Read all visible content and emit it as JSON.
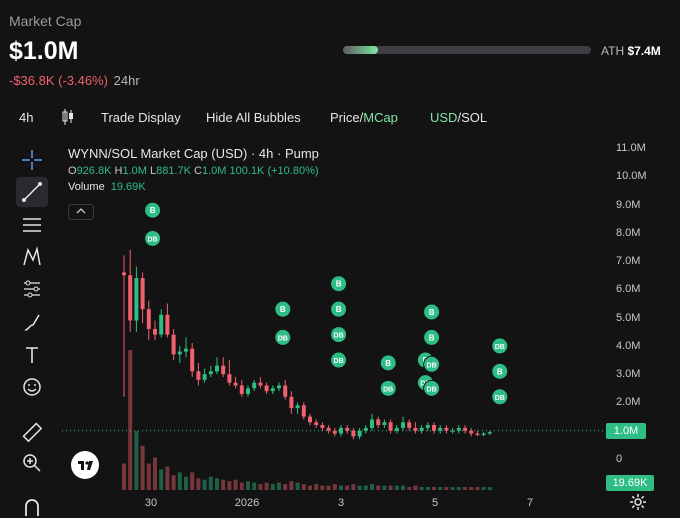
{
  "header": {
    "label": "Market Cap",
    "value": "$1.0M",
    "change": "-$36.8K (-3.46%)",
    "period": "24hr",
    "ath_label": "ATH",
    "ath_value": "$7.4M",
    "ath_progress_fraction": 0.14
  },
  "toolbar": {
    "interval": "4h",
    "trade_display": "Trade Display",
    "hide_bubbles": "Hide All Bubbles",
    "price_label": "Price/",
    "mcap_label": "MCap",
    "usd_label": "USD",
    "sol_label": "/SOL"
  },
  "sidebar_tools": [
    "crosshair-icon",
    "trendline-icon",
    "fib-icon",
    "pattern-icon",
    "forecast-icon",
    "brush-icon",
    "text-icon",
    "emoji-icon",
    "ruler-icon",
    "zoom-icon",
    "magnet-icon"
  ],
  "legend": {
    "title": "WYNN/SOL Market Cap (USD) · 4h · Pump",
    "o_key": "O",
    "o": "926.8K",
    "h_key": "H",
    "h": "1.0M",
    "l_key": "L",
    "l": "881.7K",
    "c_key": "C",
    "c": "1.0M",
    "change": "100.1K (+10.80%)",
    "volume_label": "Volume",
    "volume": "19.69K"
  },
  "colors": {
    "up": "#2ebd85",
    "down": "#f0616d",
    "accent": "#7fe6a6",
    "bg": "#131313"
  },
  "current_price_label": "1.0M",
  "current_volume_label": "19.69K",
  "chart_data": {
    "type": "candlestick",
    "y_ticks": [
      "11.0M",
      "10.0M",
      "9.0M",
      "8.0M",
      "7.0M",
      "6.0M",
      "5.0M",
      "4.0M",
      "3.0M",
      "2.0M",
      "0"
    ],
    "x_ticks": [
      "30",
      "2026",
      "3",
      "5",
      "7"
    ],
    "ylim": [
      0,
      11.0
    ],
    "candles": [
      [
        6.6,
        7.2,
        2.2,
        6.5
      ],
      [
        6.5,
        7.4,
        4.5,
        4.9
      ],
      [
        4.9,
        6.8,
        4.5,
        6.4
      ],
      [
        6.4,
        6.6,
        4.8,
        5.3
      ],
      [
        5.3,
        5.6,
        4.2,
        4.6
      ],
      [
        4.6,
        4.9,
        4.2,
        4.4
      ],
      [
        4.4,
        5.3,
        4.3,
        5.1
      ],
      [
        5.1,
        5.5,
        4.3,
        4.4
      ],
      [
        4.4,
        4.6,
        3.5,
        3.7
      ],
      [
        3.7,
        4.0,
        3.4,
        3.8
      ],
      [
        3.8,
        4.3,
        3.6,
        3.9
      ],
      [
        3.9,
        4.1,
        2.9,
        3.1
      ],
      [
        3.1,
        3.4,
        2.6,
        2.8
      ],
      [
        2.8,
        3.2,
        2.7,
        3.0
      ],
      [
        3.0,
        3.3,
        2.9,
        3.1
      ],
      [
        3.1,
        3.6,
        3.0,
        3.3
      ],
      [
        3.3,
        3.6,
        2.9,
        3.0
      ],
      [
        3.0,
        3.5,
        2.6,
        2.7
      ],
      [
        2.7,
        2.9,
        2.5,
        2.6
      ],
      [
        2.6,
        2.8,
        2.2,
        2.3
      ],
      [
        2.3,
        2.6,
        2.2,
        2.5
      ],
      [
        2.5,
        2.8,
        2.4,
        2.7
      ],
      [
        2.7,
        2.9,
        2.5,
        2.6
      ],
      [
        2.6,
        2.7,
        2.3,
        2.4
      ],
      [
        2.4,
        2.6,
        2.3,
        2.5
      ],
      [
        2.5,
        2.7,
        2.4,
        2.6
      ],
      [
        2.6,
        2.8,
        2.1,
        2.2
      ],
      [
        2.2,
        2.4,
        1.6,
        1.8
      ],
      [
        1.8,
        2.0,
        1.6,
        1.9
      ],
      [
        1.9,
        2.0,
        1.4,
        1.5
      ],
      [
        1.5,
        1.6,
        1.2,
        1.3
      ],
      [
        1.3,
        1.4,
        1.1,
        1.2
      ],
      [
        1.2,
        1.3,
        1.0,
        1.1
      ],
      [
        1.1,
        1.2,
        0.9,
        1.0
      ],
      [
        1.0,
        1.1,
        0.8,
        0.9
      ],
      [
        0.9,
        1.2,
        0.8,
        1.1
      ],
      [
        1.1,
        1.2,
        0.9,
        1.0
      ],
      [
        1.0,
        1.1,
        0.7,
        0.8
      ],
      [
        0.8,
        1.1,
        0.7,
        1.0
      ],
      [
        1.0,
        1.2,
        0.9,
        1.1
      ],
      [
        1.1,
        1.6,
        1.0,
        1.4
      ],
      [
        1.4,
        1.5,
        1.1,
        1.2
      ],
      [
        1.2,
        1.4,
        1.1,
        1.3
      ],
      [
        1.3,
        1.4,
        0.9,
        1.0
      ],
      [
        1.0,
        1.2,
        0.9,
        1.1
      ],
      [
        1.1,
        1.5,
        1.0,
        1.3
      ],
      [
        1.3,
        1.4,
        1.0,
        1.1
      ],
      [
        1.1,
        1.3,
        0.9,
        1.0
      ],
      [
        1.0,
        1.2,
        0.9,
        1.1
      ],
      [
        1.1,
        1.3,
        1.0,
        1.2
      ],
      [
        1.2,
        1.3,
        0.9,
        1.0
      ],
      [
        1.0,
        1.2,
        0.9,
        1.1
      ],
      [
        1.1,
        1.2,
        0.9,
        1.0
      ],
      [
        1.0,
        1.1,
        0.9,
        1.0
      ],
      [
        1.0,
        1.2,
        0.9,
        1.1
      ],
      [
        1.1,
        1.2,
        0.9,
        1.0
      ],
      [
        1.0,
        1.1,
        0.8,
        0.9
      ],
      [
        0.9,
        1.0,
        0.8,
        0.85
      ],
      [
        0.85,
        0.95,
        0.8,
        0.9
      ],
      [
        0.9,
        1.0,
        0.85,
        0.95
      ]
    ],
    "volume": [
      18,
      95,
      40,
      30,
      18,
      22,
      14,
      16,
      10,
      12,
      9,
      12,
      8,
      7,
      9,
      8,
      7,
      6,
      7,
      5,
      6,
      5,
      4,
      5,
      4,
      5,
      4,
      6,
      5,
      4,
      3,
      4,
      3,
      3,
      4,
      3,
      3,
      4,
      3,
      3,
      4,
      3,
      3,
      3,
      3,
      3,
      2,
      3,
      2,
      2,
      2,
      2,
      2,
      2,
      2,
      2,
      2,
      2,
      2,
      2
    ],
    "bubbles": [
      {
        "label": "B",
        "i": 3,
        "v": 8.8
      },
      {
        "label": "DB",
        "i": 3,
        "v": 7.8
      },
      {
        "label": "B",
        "i": 24,
        "v": 5.3
      },
      {
        "label": "DB",
        "i": 24,
        "v": 4.3
      },
      {
        "label": "B",
        "i": 33,
        "v": 6.2
      },
      {
        "label": "B",
        "i": 33,
        "v": 5.3
      },
      {
        "label": "DB",
        "i": 33,
        "v": 4.4
      },
      {
        "label": "DB",
        "i": 33,
        "v": 3.5
      },
      {
        "label": "B",
        "i": 41,
        "v": 3.4
      },
      {
        "label": "DB",
        "i": 41,
        "v": 2.5
      },
      {
        "label": "B",
        "i": 48,
        "v": 5.2
      },
      {
        "label": "B",
        "i": 48,
        "v": 4.3
      },
      {
        "label": "B",
        "i": 47,
        "v": 3.5
      },
      {
        "label": "DB",
        "i": 48,
        "v": 3.35
      },
      {
        "label": "DB",
        "i": 47,
        "v": 2.7
      },
      {
        "label": "DB",
        "i": 48,
        "v": 2.5
      },
      {
        "label": "DB",
        "i": 59,
        "v": 4.0
      },
      {
        "label": "B",
        "i": 59,
        "v": 3.1
      },
      {
        "label": "DB",
        "i": 59,
        "v": 2.2
      }
    ]
  }
}
